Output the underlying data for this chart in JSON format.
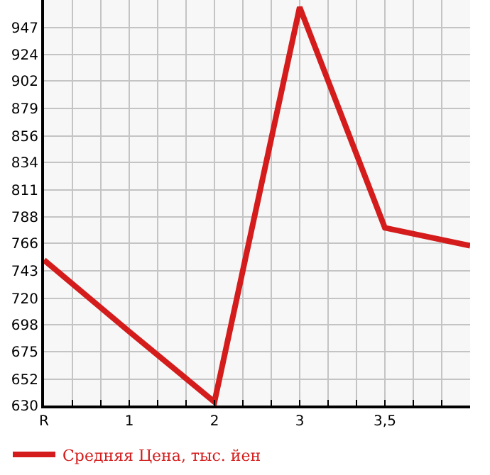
{
  "chart_data": {
    "type": "line",
    "categories": [
      "R",
      "1",
      "2",
      "3",
      "3,5",
      null
    ],
    "series": [
      {
        "name": "Средняя Цена, тыс. йен",
        "color": "#d41c1c",
        "values": [
          752,
          692,
          633,
          964,
          779,
          764
        ]
      }
    ],
    "ylim": [
      630,
      970
    ],
    "yticks": [
      630,
      652,
      675,
      698,
      720,
      743,
      766,
      788,
      811,
      834,
      856,
      879,
      902,
      924,
      947
    ],
    "grid": true,
    "legend": "bottom left",
    "marker": "none",
    "line_style": "solid"
  }
}
